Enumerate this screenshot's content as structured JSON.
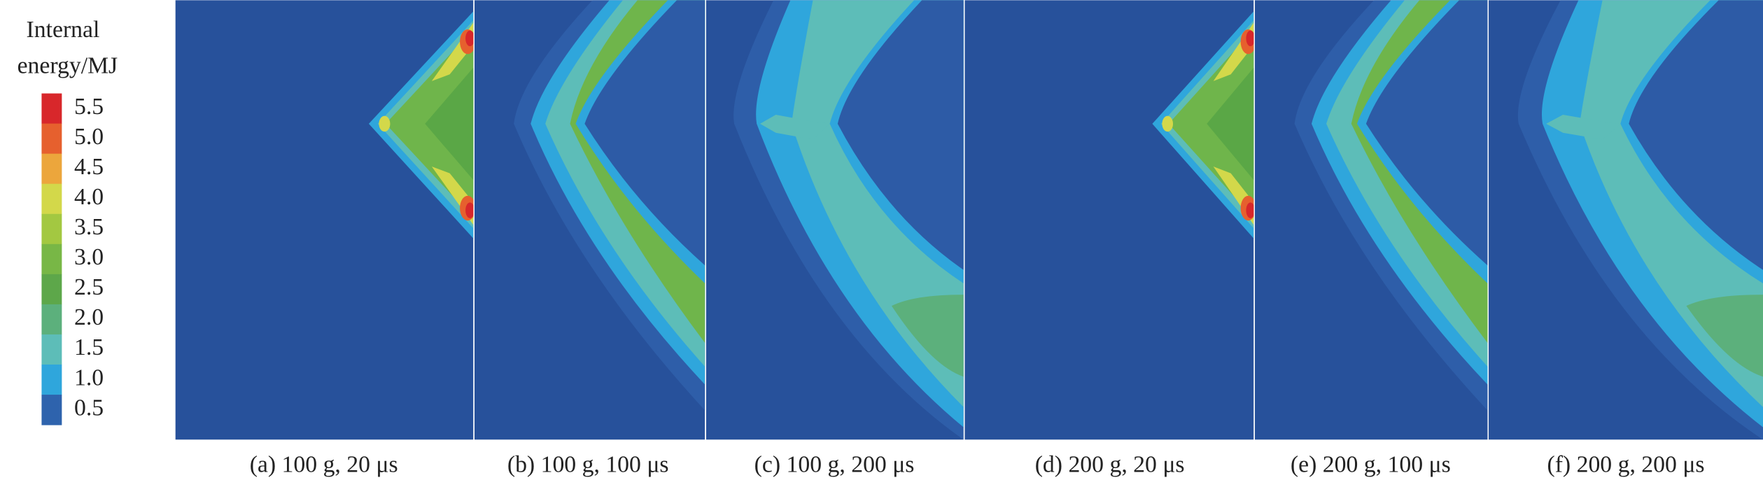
{
  "legend": {
    "title_lines": [
      "Internal",
      "energy/MJ"
    ],
    "items": [
      {
        "label": "5.5",
        "color": "#d8272b"
      },
      {
        "label": "5.0",
        "color": "#e6602e"
      },
      {
        "label": "4.5",
        "color": "#eca63c"
      },
      {
        "label": "4.0",
        "color": "#d3d84a"
      },
      {
        "label": "3.5",
        "color": "#a3c841"
      },
      {
        "label": "3.0",
        "color": "#78b746"
      },
      {
        "label": "2.5",
        "color": "#5da74a"
      },
      {
        "label": "2.0",
        "color": "#5cb07c"
      },
      {
        "label": "1.5",
        "color": "#5dbdb8"
      },
      {
        "label": "1.0",
        "color": "#2fa6dc"
      },
      {
        "label": "0.5",
        "color": "#2e63ad"
      }
    ]
  },
  "panels": [
    {
      "caption": "(a) 100 g, 20 μs"
    },
    {
      "caption": "(b) 100 g, 100 μs"
    },
    {
      "caption": "(c) 100 g, 200 μs"
    },
    {
      "caption": "(d) 200 g, 20 μs"
    },
    {
      "caption": "(e) 200 g, 100 μs"
    },
    {
      "caption": "(f) 200 g, 200 μs"
    }
  ]
}
